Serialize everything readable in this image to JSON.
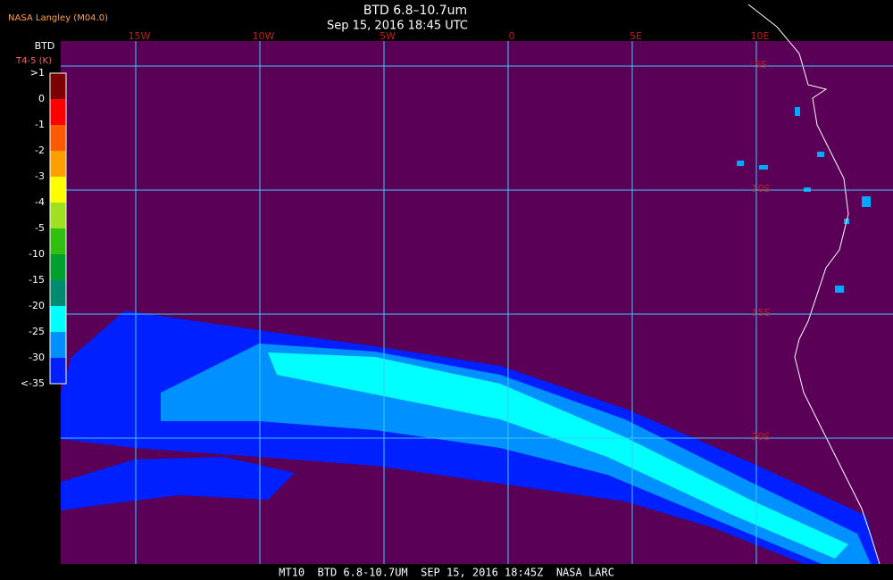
{
  "header": {
    "source": "NASA Langley (M04.0)",
    "title": "BTD 6.8–10.7um",
    "datetime": "Sep 15, 2016 18:45 UTC"
  },
  "legend": {
    "title": "BTD",
    "subtitle": "T4-5 (K)",
    "labels": [
      ">1",
      "0",
      "-1",
      "-2",
      "-3",
      "-4",
      "-5",
      "-10",
      "-15",
      "-20",
      "-25",
      "-30",
      "<-35"
    ],
    "colors": [
      "#7a0000",
      "#ff0000",
      "#ff5a00",
      "#ffa000",
      "#ffff00",
      "#a0e020",
      "#30c010",
      "#00a030",
      "#008a70",
      "#00ffff",
      "#0090ff",
      "#0020ff",
      "#5a0057"
    ]
  },
  "grid": {
    "longitudes": [
      "15W",
      "10W",
      "5W",
      "0",
      "5E",
      "10E"
    ],
    "latitudes": [
      "5S",
      "10S",
      "15S",
      "20S"
    ]
  },
  "footer": "MT10  BTD 6.8-10.7UM  SEP 15, 2016 18:45Z  NASA LARC"
}
